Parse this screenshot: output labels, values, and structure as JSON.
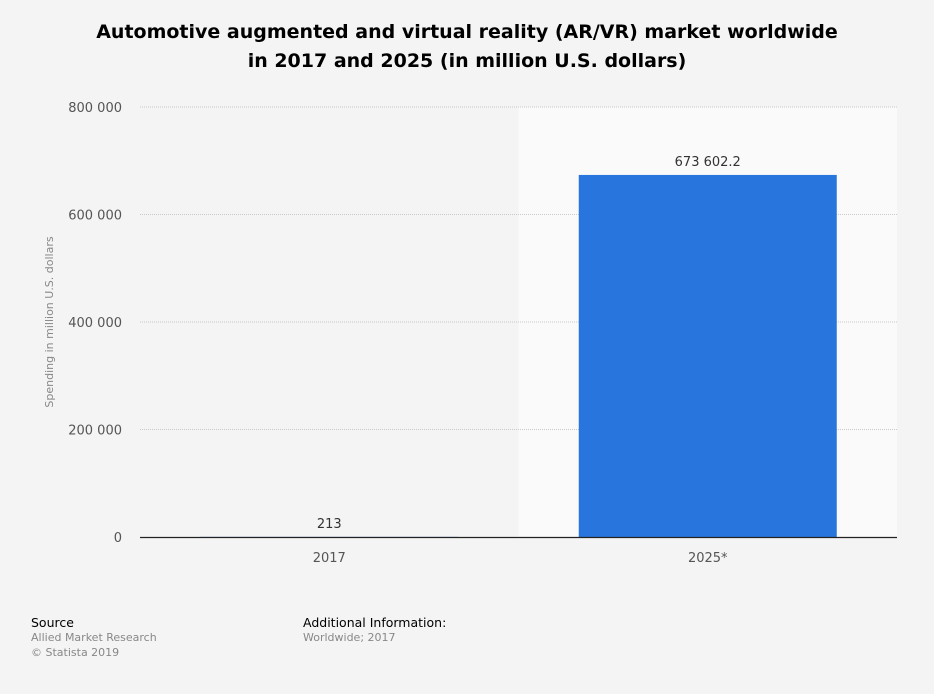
{
  "title_line1": "Automotive augmented and virtual reality (AR/VR) market worldwide",
  "title_line2": "in 2017 and 2025 (in million U.S. dollars)",
  "chart_data": {
    "type": "bar",
    "categories": [
      "2017",
      "2025*"
    ],
    "values": [
      213,
      673602.2
    ],
    "value_labels": [
      "213",
      "673 602.2"
    ],
    "ylabel": "Spending in million U.S. dollars",
    "ylim": [
      0,
      800000
    ],
    "yticks": [
      0,
      200000,
      400000,
      600000,
      800000
    ],
    "ytick_labels": [
      "0",
      "200 000",
      "400 000",
      "600 000",
      "800 000"
    ],
    "grid": true,
    "highlighted_category": "2025*",
    "bar_color": "#2876dd"
  },
  "footer": {
    "source_heading": "Source",
    "source_lines": [
      "Allied Market Research",
      "© Statista 2019"
    ],
    "additional_heading": "Additional Information:",
    "additional_lines": [
      "Worldwide; 2017"
    ]
  }
}
